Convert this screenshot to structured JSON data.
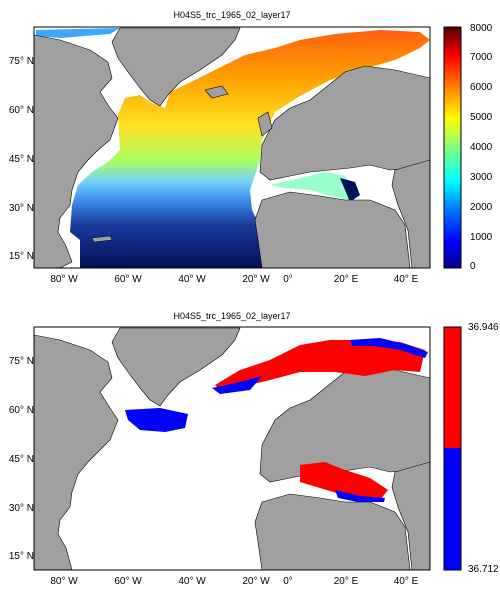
{
  "maps": [
    {
      "title": "H04S5_trc_1965_02_layer17",
      "lat_labels": [
        "75° N",
        "60° N",
        "45° N",
        "30° N",
        "15° N"
      ],
      "lon_labels": [
        "80° W",
        "60° W",
        "40° W",
        "20° W",
        "0°",
        "20° E",
        "40° E"
      ],
      "colorbar": {
        "type": "continuous",
        "colormap": "jet",
        "range": [
          0,
          8000
        ],
        "ticks": [
          "8000",
          "7000",
          "6000",
          "5000",
          "4000",
          "3000",
          "2000",
          "1000",
          "0"
        ]
      }
    },
    {
      "title": "H04S5_trc_1965_02_layer17",
      "lat_labels": [
        "75° N",
        "60° N",
        "45° N",
        "30° N",
        "15° N"
      ],
      "lon_labels": [
        "80° W",
        "60° W",
        "40° W",
        "20° W",
        "0°",
        "20° E",
        "40° E"
      ],
      "colorbar": {
        "type": "two-class",
        "colors": [
          "#ff0000",
          "#0000ff"
        ],
        "ticks": [
          "36.946",
          "36.712"
        ]
      }
    }
  ],
  "colors": {
    "land": "#a0a0a0",
    "ocean": "#ffffff",
    "deep": "#00105a"
  }
}
